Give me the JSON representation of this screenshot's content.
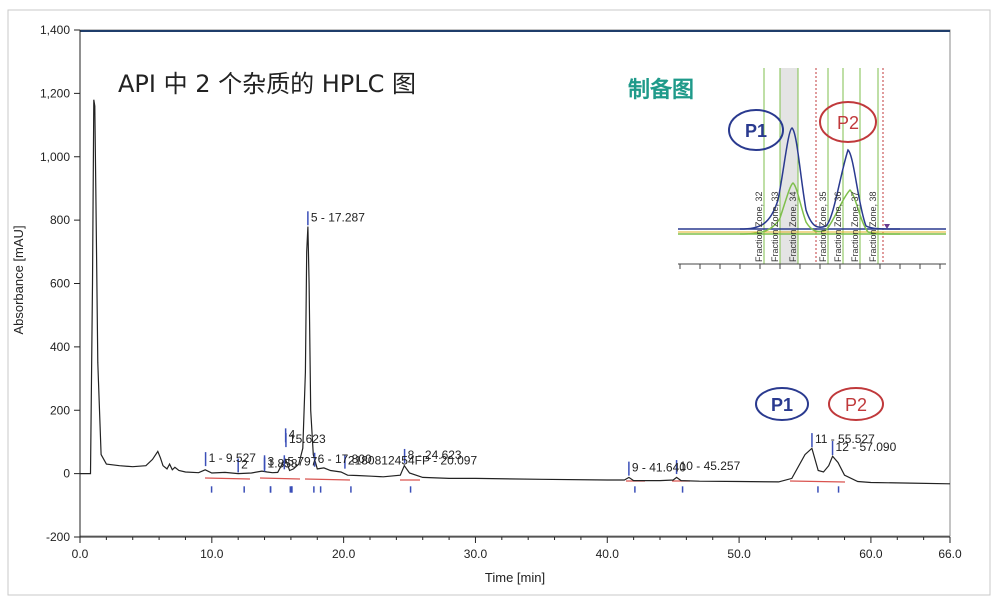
{
  "chart_data": {
    "type": "line",
    "title": "API 中 2 个杂质的 HPLC 图",
    "xlabel": "Time [min]",
    "ylabel": "Absorbance [mAU]",
    "xlim": [
      0,
      66
    ],
    "ylim": [
      -200,
      1400
    ],
    "x_ticks": [
      0,
      10,
      20,
      30,
      40,
      50,
      60,
      66
    ],
    "x_tick_labels": [
      "0.0",
      "10.0",
      "20.0",
      "30.0",
      "40.0",
      "50.0",
      "60.0",
      "66.0"
    ],
    "y_ticks": [
      -200,
      0,
      200,
      400,
      600,
      800,
      1000,
      1200,
      1400
    ],
    "y_tick_labels": [
      "-200",
      "0",
      "200",
      "400",
      "600",
      "800",
      "1,000",
      "1,200",
      "1,400"
    ],
    "series": [
      {
        "color": "#222222",
        "x": [
          0,
          0.8,
          0.95,
          1.05,
          1.12,
          1.2,
          1.35,
          1.6,
          2.0,
          3.0,
          4.0,
          5.0,
          5.5,
          5.9,
          6.1,
          6.3,
          6.6,
          6.8,
          7.0,
          7.2,
          7.5,
          8.0,
          9.0,
          9.5,
          10.0,
          11.0,
          12.0,
          13.0,
          13.8,
          14.2,
          14.6,
          15.0,
          15.4,
          15.6,
          15.9,
          16.2,
          16.6,
          16.9,
          17.1,
          17.2,
          17.287,
          17.38,
          17.5,
          17.7,
          18.0,
          18.5,
          19.0,
          19.8,
          20.3,
          21.0,
          22.1,
          23.0,
          24.3,
          24.6,
          25.0,
          26.0,
          28.0,
          30.0,
          35.0,
          40.0,
          41.3,
          41.64,
          42.0,
          44.0,
          45.0,
          45.257,
          45.6,
          47.0,
          50.0,
          53.0,
          54.0,
          55.0,
          55.527,
          56.0,
          56.4,
          56.8,
          57.09,
          57.5,
          58.0,
          59.0,
          60.0,
          63.0,
          66.0
        ],
        "y": [
          0,
          0,
          600,
          1180,
          1160,
          900,
          350,
          60,
          30,
          25,
          22,
          25,
          45,
          70,
          50,
          25,
          15,
          30,
          12,
          20,
          10,
          5,
          3,
          12,
          2,
          4,
          0,
          2,
          8,
          5,
          3,
          4,
          35,
          45,
          10,
          15,
          30,
          80,
          320,
          700,
          780,
          600,
          200,
          60,
          15,
          18,
          10,
          5,
          -5,
          -6,
          -8,
          -10,
          -5,
          25,
          2,
          -12,
          -15,
          -15,
          -18,
          -20,
          -20,
          -12,
          -22,
          -22,
          -20,
          -12,
          -22,
          -24,
          -25,
          -26,
          -15,
          60,
          80,
          10,
          5,
          25,
          55,
          35,
          -5,
          -25,
          -28,
          -30,
          -32
        ]
      }
    ],
    "peak_labels": [
      {
        "text": "1 - 9.527",
        "x": 9.527,
        "y": 30
      },
      {
        "text": "2",
        "x": 12.0,
        "y": 10
      },
      {
        "text": "3",
        "x": 14.0,
        "y": 20
      },
      {
        "text": "1.858",
        "x": 14.0,
        "y": 13
      },
      {
        "text": "4",
        "x": 15.6,
        "y": 105
      },
      {
        "text": "15.623",
        "x": 15.623,
        "y": 90
      },
      {
        "text": "5.797",
        "x": 15.5,
        "y": 20
      },
      {
        "text": "6 - 17.800",
        "x": 17.8,
        "y": 28
      },
      {
        "text": "2180812454FP - 20.097",
        "x": 20.097,
        "y": 22
      },
      {
        "text": "8 - 24.623",
        "x": 24.623,
        "y": 40
      },
      {
        "text": "5 - 17.287",
        "x": 17.287,
        "y": 790
      },
      {
        "text": "9 - 41.640",
        "x": 41.64,
        "y": 0
      },
      {
        "text": "10 - 45.257",
        "x": 45.257,
        "y": 5
      },
      {
        "text": "11 - 55.527",
        "x": 55.527,
        "y": 90
      },
      {
        "text": "12 - 57.090",
        "x": 57.09,
        "y": 65
      }
    ],
    "annotations": [
      {
        "text": "P1",
        "x": 54.8,
        "y": 260,
        "color": "#2a3a8f"
      },
      {
        "text": "P2",
        "x": 59.0,
        "y": 260,
        "color": "#c0393b"
      }
    ],
    "grid": false,
    "inset": {
      "title": "制备图",
      "fraction_zones": [
        "Fraction Zone, 32",
        "Fraction Zone, 33",
        "Fraction Zone, 34",
        "Fraction Zone, 35",
        "Fraction Zone, 36",
        "Fraction Zone, 37",
        "Fraction Zone, 38"
      ],
      "annotations": [
        {
          "text": "P1",
          "color": "#2a3a8f"
        },
        {
          "text": "P2",
          "color": "#c0393b"
        }
      ]
    }
  }
}
